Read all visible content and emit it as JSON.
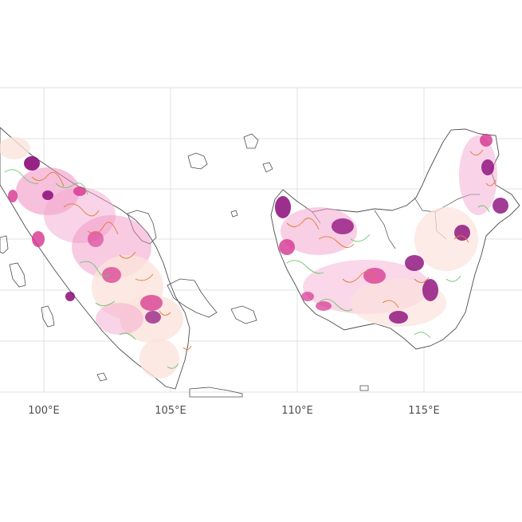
{
  "map": {
    "x_axis": {
      "tick_labels": [
        "100°E",
        "105°E",
        "110°E",
        "115°E"
      ]
    },
    "colors": {
      "background": "#ffffff",
      "grid": "#d9d9d9",
      "coastline": "#4d4d4d",
      "density_low": "#fbe3dc",
      "density_mid": "#f08cbf",
      "density_high": "#d6338f",
      "density_peak": "#8b0a7a",
      "contour_green": "#6cc46c",
      "contour_orange": "#e07a2e"
    }
  }
}
